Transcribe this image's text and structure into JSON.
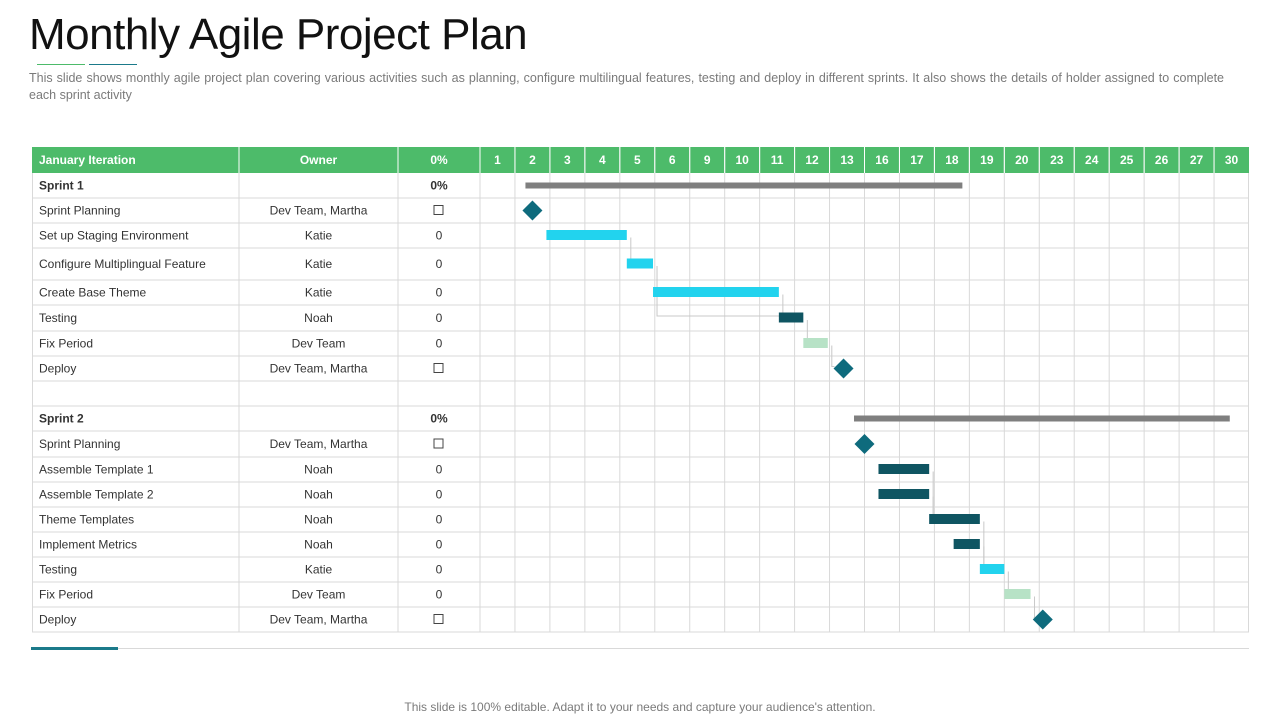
{
  "slide": {
    "title": "Monthly Agile Project Plan",
    "subtitle": "This slide shows monthly agile project plan covering various activities such as planning, configure multilingual features, testing and deploy in different sprints. It also shows the details of holder assigned to complete each sprint activity",
    "footer": "This slide is 100% editable. Adapt it to your needs and capture your audience's attention."
  },
  "colors": {
    "header_green": "#4dbb6a",
    "title_accent_green": "#4dbb6a",
    "title_accent_teal": "#1b7a8a",
    "summary_bar": "#7f7f7f",
    "milestone": "#0e6b7d",
    "bar_cyan": "#22d3ee",
    "bar_dark_teal": "#0f5562",
    "bar_light_green": "#b7e2c6",
    "grid": "#d9d9d9",
    "connector": "#c8c8c8"
  },
  "table": {
    "headers": {
      "task": "January Iteration",
      "owner": "Owner",
      "progress": "0%"
    },
    "days": [
      "1",
      "2",
      "3",
      "4",
      "5",
      "6",
      "9",
      "10",
      "11",
      "12",
      "13",
      "16",
      "17",
      "18",
      "19",
      "20",
      "23",
      "24",
      "25",
      "26",
      "27",
      "30"
    ],
    "rows": [
      {
        "task": "Sprint 1",
        "owner": "",
        "progress": "0%",
        "kind": "summary",
        "bar": {
          "type": "summary",
          "start": 1.3,
          "end": 13.8
        }
      },
      {
        "task": "Sprint Planning",
        "owner": "Dev Team, Martha",
        "progress": "",
        "kind": "milestone",
        "bar": {
          "type": "milestone",
          "at": 1.5
        }
      },
      {
        "task": "Set up Staging Environment",
        "owner": "Katie",
        "progress": "0",
        "kind": "task",
        "bar": {
          "type": "cyan",
          "start": 1.9,
          "end": 4.2
        }
      },
      {
        "task": "Configure Multiplingual Feature",
        "owner": "Katie",
        "progress": "0",
        "kind": "task",
        "bar": {
          "type": "cyan",
          "start": 4.2,
          "end": 4.95
        }
      },
      {
        "task": "Create Base Theme",
        "owner": "Katie",
        "progress": "0",
        "kind": "task",
        "bar": {
          "type": "cyan",
          "start": 4.95,
          "end": 8.55
        }
      },
      {
        "task": "Testing",
        "owner": "Noah",
        "progress": "0",
        "kind": "task",
        "bar": {
          "type": "dark",
          "start": 8.55,
          "end": 9.25
        }
      },
      {
        "task": "Fix Period",
        "owner": "Dev Team",
        "progress": "0",
        "kind": "task",
        "bar": {
          "type": "light",
          "start": 9.25,
          "end": 9.95
        }
      },
      {
        "task": "Deploy",
        "owner": "Dev Team, Martha",
        "progress": "",
        "kind": "milestone",
        "bar": {
          "type": "milestone",
          "at": 10.4
        }
      },
      {
        "task": "",
        "owner": "",
        "progress": "",
        "kind": "blank",
        "bar": null
      },
      {
        "task": "Sprint 2",
        "owner": "",
        "progress": "0%",
        "kind": "summary",
        "bar": {
          "type": "summary",
          "start": 10.7,
          "end": 21.45
        }
      },
      {
        "task": "Sprint Planning",
        "owner": "Dev Team, Martha",
        "progress": "",
        "kind": "milestone",
        "bar": {
          "type": "milestone",
          "at": 11.0
        }
      },
      {
        "task": "Assemble Template 1",
        "owner": "Noah",
        "progress": "0",
        "kind": "task",
        "bar": {
          "type": "dark",
          "start": 11.4,
          "end": 12.85
        }
      },
      {
        "task": "Assemble Template 2",
        "owner": "Noah",
        "progress": "0",
        "kind": "task",
        "bar": {
          "type": "dark",
          "start": 11.4,
          "end": 12.85
        }
      },
      {
        "task": "Theme Templates",
        "owner": "Noah",
        "progress": "0",
        "kind": "task",
        "bar": {
          "type": "dark",
          "start": 12.85,
          "end": 14.3
        }
      },
      {
        "task": "Implement Metrics",
        "owner": "Noah",
        "progress": "0",
        "kind": "task",
        "bar": {
          "type": "dark",
          "start": 13.55,
          "end": 14.3
        }
      },
      {
        "task": "Testing",
        "owner": "Katie",
        "progress": "0",
        "kind": "task",
        "bar": {
          "type": "cyan",
          "start": 14.3,
          "end": 15.0
        }
      },
      {
        "task": "Fix Period",
        "owner": "Dev Team",
        "progress": "0",
        "kind": "task",
        "bar": {
          "type": "light",
          "start": 15.0,
          "end": 15.75
        }
      },
      {
        "task": "Deploy",
        "owner": "Dev Team, Martha",
        "progress": "",
        "kind": "milestone",
        "bar": {
          "type": "milestone",
          "at": 16.1
        }
      }
    ]
  },
  "dependencies": [
    {
      "from": 2,
      "to": 3
    },
    {
      "from": 3,
      "to": 4
    },
    {
      "from": 3,
      "to": 5
    },
    {
      "from": 4,
      "to": 5
    },
    {
      "from": 5,
      "to": 6
    },
    {
      "from": 6,
      "to": 7
    },
    {
      "from": 11,
      "to": 13
    },
    {
      "from": 12,
      "to": 13
    },
    {
      "from": 13,
      "to": 15
    },
    {
      "from": 14,
      "to": 15
    },
    {
      "from": 15,
      "to": 16
    },
    {
      "from": 16,
      "to": 17
    }
  ]
}
